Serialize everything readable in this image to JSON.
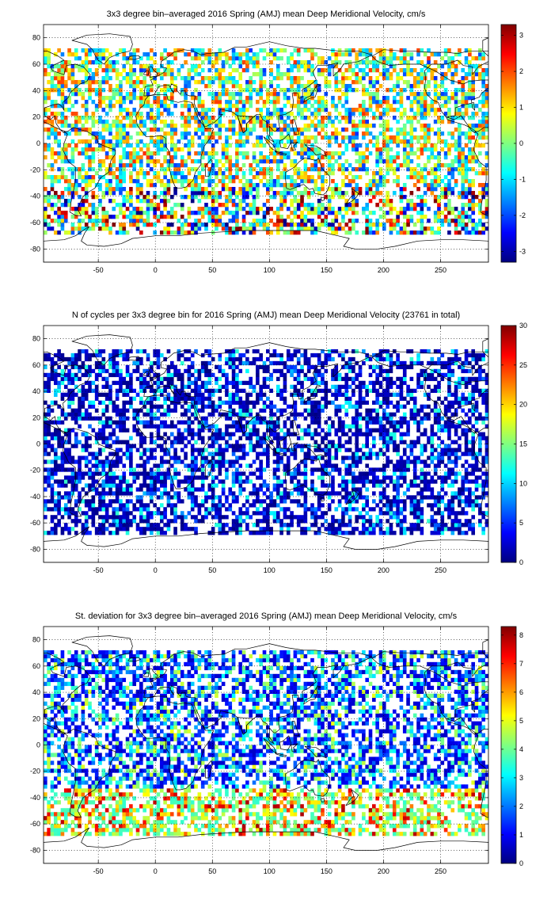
{
  "chart_data": [
    {
      "type": "heatmap",
      "title": "3x3 degree bin–averaged 2016 Spring (AMJ) mean Deep Meridional Velocity, cm/s",
      "xlabel": "",
      "ylabel": "",
      "xlim": [
        -98,
        292
      ],
      "ylim": [
        -90,
        90
      ],
      "x_ticks": [
        "-50",
        "0",
        "50",
        "100",
        "150",
        "200",
        "250"
      ],
      "y_ticks": [
        "80",
        "60",
        "40",
        "20",
        "0",
        "-20",
        "-40",
        "-60",
        "-80"
      ],
      "colorbar": {
        "range": [
          -3.3,
          3.3
        ],
        "ticks": [
          "3",
          "2",
          "1",
          "0",
          "-1",
          "-2",
          "-3"
        ],
        "colormap": "jet"
      },
      "bin_size_deg": 3,
      "grid": true,
      "value_profile": "diverging"
    },
    {
      "type": "heatmap",
      "title": "N of cycles per 3x3 degree bin for 2016 Spring (AMJ) mean Deep Meridional Velocity (23761 in total)",
      "xlabel": "",
      "ylabel": "",
      "xlim": [
        -98,
        292
      ],
      "ylim": [
        -90,
        90
      ],
      "x_ticks": [
        "-50",
        "0",
        "50",
        "100",
        "150",
        "200",
        "250"
      ],
      "y_ticks": [
        "80",
        "60",
        "40",
        "20",
        "0",
        "-20",
        "-40",
        "-60",
        "-80"
      ],
      "colorbar": {
        "range": [
          0,
          30
        ],
        "ticks": [
          "30",
          "25",
          "20",
          "15",
          "10",
          "5",
          "0"
        ],
        "colormap": "jet"
      },
      "bin_size_deg": 3,
      "grid": true,
      "total_cycles": 23761,
      "value_profile": "counts"
    },
    {
      "type": "heatmap",
      "title": "St. deviation for 3x3 degree bin–averaged 2016 Spring (AMJ) mean Deep Meridional Velocity, cm/s",
      "xlabel": "",
      "ylabel": "",
      "xlim": [
        -98,
        292
      ],
      "ylim": [
        -90,
        90
      ],
      "x_ticks": [
        "-50",
        "0",
        "50",
        "100",
        "150",
        "200",
        "250"
      ],
      "y_ticks": [
        "80",
        "60",
        "40",
        "20",
        "0",
        "-20",
        "-40",
        "-60",
        "-80"
      ],
      "colorbar": {
        "range": [
          0,
          8.3
        ],
        "ticks": [
          "8",
          "7",
          "6",
          "5",
          "4",
          "3",
          "2",
          "1",
          "0"
        ],
        "colormap": "jet"
      },
      "bin_size_deg": 3,
      "grid": true,
      "value_profile": "std"
    }
  ]
}
